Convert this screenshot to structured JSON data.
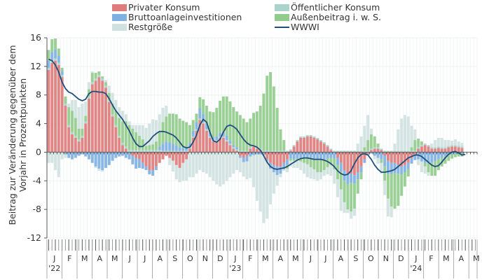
{
  "chart_data": {
    "type": "bar",
    "stacked": true,
    "title": "",
    "xlabel": "",
    "ylabel": "Beitrag zur Veränderung gegenüber dem Vorjahr in Prozentpunkten",
    "ylabel_lines": [
      "Beitrag zur Veränderung gegenüber dem",
      "Vorjahr in Prozentpunkten"
    ],
    "ylim": [
      -12,
      16
    ],
    "yticks": [
      16,
      12,
      8,
      4,
      0,
      -4,
      -8,
      -12
    ],
    "grid": true,
    "legend_position": "top",
    "frequency": "weekly",
    "x_month_labels": [
      "J",
      "F",
      "M",
      "A",
      "M",
      "J",
      "J",
      "A",
      "S",
      "O",
      "N",
      "D",
      "J",
      "F",
      "M",
      "A",
      "M",
      "J",
      "J",
      "A",
      "S",
      "O",
      "N",
      "D",
      "J",
      "F",
      "M",
      "A",
      "M"
    ],
    "x_year_labels": [
      {
        "month_index": 0,
        "label": "'22"
      },
      {
        "month_index": 12,
        "label": "'23"
      },
      {
        "month_index": 24,
        "label": "'24"
      }
    ],
    "legend": [
      {
        "name": "Privater Konsum",
        "color": "#de7b7b",
        "kind": "bar"
      },
      {
        "name": "Öffentlicher Konsum",
        "color": "#a9d3cc",
        "kind": "bar"
      },
      {
        "name": "Bruttoanlageinvestitionen",
        "color": "#7fb1e3",
        "kind": "bar"
      },
      {
        "name": "Außenbeitrag i. w. S.",
        "color": "#92cc8c",
        "kind": "bar"
      },
      {
        "name": "Restgröße",
        "color": "#cfe2df",
        "kind": "bar"
      },
      {
        "name": "WWWI",
        "color": "#1f4e79",
        "kind": "line"
      }
    ],
    "series": [
      {
        "name": "Privater Konsum",
        "values": [
          11.5,
          12.5,
          12.8,
          12.2,
          10.5,
          6.5,
          3.5,
          2.5,
          2.0,
          1.5,
          2.0,
          4.0,
          7.5,
          9.5,
          10.0,
          10.5,
          10.0,
          9.0,
          7.0,
          5.0,
          3.5,
          2.0,
          1.0,
          0.5,
          0,
          -0.5,
          -0.8,
          -1.0,
          -1.5,
          -2.0,
          -2.5,
          -2.5,
          -2.0,
          -1.5,
          -1.0,
          -0.5,
          -0.8,
          -1.2,
          -1.8,
          -2.2,
          -1.5,
          -1.0,
          0.5,
          2.0,
          3.0,
          4.5,
          4.0,
          3.0,
          2.0,
          1.5,
          1.5,
          2.0,
          2.0,
          1.5,
          1.0,
          0.5,
          0.2,
          -0.5,
          -0.8,
          -0.5,
          0.5,
          0.8,
          0.5,
          0.3,
          -0.2,
          -1.0,
          -1.5,
          -1.8,
          -2.0,
          -2.0,
          -1.5,
          -1.0,
          0.2,
          0.8,
          1.5,
          2.0,
          2.0,
          2.2,
          2.2,
          2.0,
          1.8,
          1.5,
          1.2,
          0.8,
          0.3,
          0,
          -0.8,
          -1.5,
          -2.5,
          -3.0,
          -3.0,
          -3.2,
          -2.8,
          -2.0,
          -1.0,
          -0.2,
          0.3,
          0.5,
          0.5,
          0.3,
          -0.5,
          -1.2,
          -1.5,
          -1.5,
          -1.8,
          -2.0,
          -1.8,
          -1.5,
          -0.8,
          -0.3,
          0.5,
          0.8,
          1.0,
          0.8,
          0.5,
          0.5,
          0.6,
          0.5,
          0.5,
          0.7,
          0.8,
          0.8,
          0.7,
          0.6
        ],
        "negative_values_note": "negative values stack below zero"
      },
      {
        "name": "Öffentlicher Konsum",
        "values": [
          0.3,
          0.3,
          0.3,
          0.3,
          0.3,
          0.3,
          0.3,
          0.3,
          0.3,
          0.3,
          0.3,
          0.3,
          0.3,
          0.3,
          0.3,
          0.3,
          0.3,
          0.3,
          0.3,
          0.3,
          0.3,
          0.3,
          0.3,
          0.3,
          0.3,
          0.3,
          0.3,
          0.3,
          0.3,
          0.3,
          0.3,
          0.3,
          0.3,
          0.3,
          0.2,
          0.2,
          0.2,
          0.2,
          0.2,
          0.2,
          0.2,
          0.2,
          0.2,
          0.2,
          0.2,
          0.2,
          0.2,
          0.2,
          0.2,
          0.2,
          0.2,
          0.2,
          0.2,
          0.2,
          0.2,
          0.2,
          0.2,
          0.2,
          0.2,
          0.2,
          0.2,
          0.2,
          0.2,
          0.2,
          0.2,
          0.2,
          0.2,
          0.2,
          0.2,
          0.2,
          0.2,
          0.2,
          0.2,
          0.2,
          0.2,
          0.2,
          0.2,
          0.2,
          0.2,
          0.2,
          0.2,
          0.2,
          0.2,
          0.2,
          0.2,
          0.2,
          0.2,
          0.2,
          0.2,
          0.2,
          0.2,
          0.2,
          0.2,
          0.2,
          0.2,
          0.2,
          0.2,
          0.2,
          0.2,
          0.2,
          0.2,
          0.2,
          0.2,
          0.2,
          0.2,
          0.2,
          0.2,
          0.2,
          0.2,
          0.2,
          0.2,
          0.2,
          0.2,
          0.2,
          0.2,
          0.2,
          0.2,
          0.2,
          0.2,
          0.2,
          0.2,
          0.2,
          0.2,
          0.2
        ]
      },
      {
        "name": "Bruttoanlageinvestitionen",
        "values": [
          1.0,
          1.2,
          1.3,
          1.0,
          0.5,
          -0.3,
          -0.8,
          -1.0,
          -0.8,
          -0.5,
          -0.3,
          -0.6,
          -1.0,
          -1.5,
          -2.0,
          -2.3,
          -2.5,
          -2.2,
          -1.8,
          -1.2,
          -0.8,
          -0.6,
          -0.5,
          -0.8,
          -1.0,
          -1.2,
          -1.5,
          -1.2,
          -0.8,
          -0.5,
          -0.6,
          -0.8,
          -0.5,
          0.5,
          1.0,
          1.3,
          1.2,
          1.0,
          0.8,
          0.5,
          0.4,
          0.5,
          0.6,
          0.8,
          1.0,
          1.5,
          1.2,
          0.8,
          0.5,
          0.4,
          0.5,
          0.5,
          0.6,
          0.6,
          0.4,
          0.3,
          0.3,
          -0.3,
          -0.6,
          -0.8,
          -0.6,
          -0.4,
          -0.3,
          -0.3,
          -0.2,
          -0.3,
          -0.8,
          -1.0,
          -1.2,
          -1.0,
          -0.9,
          -0.8,
          -0.9,
          -1.0,
          -0.9,
          -0.8,
          -0.7,
          -0.7,
          -0.8,
          -0.9,
          -1.0,
          -1.0,
          -1.0,
          -0.9,
          -0.8,
          -0.9,
          -1.0,
          -1.2,
          -1.5,
          -1.5,
          -1.3,
          -1.2,
          -1.0,
          -0.8,
          -0.5,
          -0.2,
          -0.2,
          -0.5,
          -0.8,
          -1.0,
          -1.5,
          -1.8,
          -1.6,
          -1.4,
          -1.2,
          -1.1,
          -1.0,
          -0.9,
          -0.8,
          -0.8,
          -1.0,
          -1.3,
          -1.5,
          -1.6,
          -1.5,
          -1.3,
          -1.0,
          -0.8,
          -0.6,
          -0.4,
          -0.3,
          -0.2,
          -0.2,
          -0.2
        ]
      },
      {
        "name": "Außenbeitrag i. w. S.",
        "values": [
          1.5,
          1.8,
          1.5,
          1.0,
          0.5,
          1.0,
          2.5,
          3.0,
          2.5,
          1.5,
          1.0,
          0.8,
          1.0,
          1.3,
          0.8,
          0.5,
          0.3,
          0.5,
          1.0,
          1.5,
          2.0,
          2.5,
          3.0,
          3.5,
          3.5,
          3.0,
          2.5,
          2.0,
          1.5,
          0.6,
          0.7,
          0.8,
          1.2,
          2.0,
          3.0,
          3.5,
          4.0,
          4.2,
          4.3,
          4.0,
          3.8,
          3.5,
          2.5,
          1.5,
          1.2,
          1.5,
          2.0,
          2.5,
          3.0,
          3.5,
          4.0,
          4.5,
          5.0,
          5.5,
          5.5,
          5.3,
          5.0,
          5.0,
          4.5,
          4.0,
          4.0,
          4.5,
          5.0,
          6.0,
          8.0,
          10.5,
          11.0,
          9.0,
          6.0,
          3.0,
          1.5,
          -0.5,
          -0.3,
          -0.2,
          -0.3,
          -0.5,
          -0.8,
          -1.0,
          -1.3,
          -1.5,
          -1.8,
          -1.8,
          -1.5,
          -1.2,
          -1.0,
          -1.5,
          -2.0,
          -2.5,
          -3.0,
          -3.5,
          -4.0,
          -3.5,
          -2.0,
          -1.0,
          0.5,
          1.5,
          2.0,
          1.5,
          0.5,
          -0.5,
          -2.0,
          -3.5,
          -4.5,
          -5.0,
          -4.5,
          -3.0,
          -2.0,
          -1.0,
          0.5,
          1.5,
          1.2,
          0.5,
          -0.5,
          -1.2,
          -1.8,
          -2.0,
          -1.5,
          -1.2,
          -1.0,
          -0.8,
          -0.6,
          -0.5,
          -0.4,
          -0.4
        ]
      },
      {
        "name": "Restgröße",
        "values": [
          -1.5,
          -1.5,
          -2.5,
          -3.5,
          -1.0,
          -0.5,
          0.5,
          1.5,
          2.5,
          3.0,
          3.5,
          2.0,
          1.0,
          0.2,
          -0.2,
          -0.3,
          -0.2,
          0.3,
          1.0,
          1.5,
          1.5,
          1.5,
          1.5,
          1.0,
          0.5,
          0.5,
          1.0,
          1.5,
          2.0,
          2.5,
          3.0,
          3.5,
          3.0,
          2.5,
          2.0,
          1.5,
          -1.0,
          -1.5,
          -2.0,
          -2.0,
          -2.5,
          -3.0,
          -3.5,
          -3.5,
          -3.0,
          -2.5,
          -2.8,
          -3.0,
          -3.5,
          -4.0,
          -4.5,
          -4.8,
          -4.5,
          -4.0,
          -3.5,
          -3.0,
          -2.5,
          -2.0,
          -2.0,
          -2.5,
          -3.0,
          -4.5,
          -6.5,
          -8.0,
          -9.5,
          -8.0,
          -5.0,
          -3.0,
          -1.5,
          -0.5,
          -0.2,
          -0.5,
          -0.8,
          -1.0,
          -1.0,
          -1.2,
          -1.5,
          -1.8,
          -1.6,
          -1.4,
          -1.2,
          -1.0,
          -0.8,
          -1.0,
          -1.5,
          -2.0,
          -2.5,
          -3.0,
          -1.5,
          -0.5,
          -1.0,
          -1.0,
          1.0,
          2.0,
          3.0,
          3.5,
          0.8,
          -0.5,
          -0.8,
          -1.5,
          -2.0,
          -2.5,
          -1.5,
          1.0,
          3.0,
          4.5,
          5.0,
          4.8,
          3.0,
          1.5,
          -0.8,
          -1.5,
          -1.0,
          -0.5,
          0.5,
          1.0,
          1.2,
          1.3,
          1.0,
          0.8,
          0.6,
          0.8,
          0.6,
          0.5
        ]
      },
      {
        "name": "WWWI",
        "kind": "line",
        "values": [
          13.0,
          12.8,
          12.2,
          11.2,
          9.8,
          8.9,
          8.4,
          8.2,
          7.8,
          7.4,
          7.2,
          7.4,
          8.2,
          8.5,
          8.5,
          8.4,
          8.4,
          8.2,
          7.5,
          6.6,
          5.8,
          5.2,
          4.6,
          3.8,
          3.0,
          2.0,
          1.2,
          0.8,
          0.8,
          1.2,
          1.6,
          2.2,
          2.6,
          2.9,
          2.9,
          2.8,
          2.6,
          2.4,
          2.0,
          1.4,
          0.8,
          0.6,
          0.7,
          1.4,
          2.4,
          3.8,
          4.6,
          4.2,
          2.8,
          1.6,
          1.4,
          1.8,
          2.8,
          3.6,
          3.8,
          3.6,
          3.2,
          2.5,
          1.8,
          1.3,
          1.0,
          0.9,
          0.7,
          0.3,
          -0.5,
          -1.4,
          -2.0,
          -2.3,
          -2.4,
          -2.3,
          -2.2,
          -2.0,
          -1.7,
          -1.4,
          -1.1,
          -0.9,
          -0.8,
          -0.8,
          -0.9,
          -1.0,
          -1.0,
          -1.0,
          -1.1,
          -1.3,
          -1.6,
          -2.0,
          -2.6,
          -3.0,
          -3.2,
          -3.1,
          -2.6,
          -1.6,
          -0.8,
          -0.3,
          -0.2,
          -0.4,
          -1.0,
          -1.8,
          -2.4,
          -2.8,
          -2.8,
          -2.7,
          -2.6,
          -2.4,
          -2.0,
          -1.6,
          -1.2,
          -0.8,
          -0.6,
          -0.4,
          -0.4,
          -0.6,
          -1.0,
          -1.4,
          -1.8,
          -2.0,
          -1.9,
          -1.4,
          -0.8,
          -0.3,
          0,
          0.1,
          -0.1,
          -0.4,
          -0.3
        ]
      }
    ]
  }
}
